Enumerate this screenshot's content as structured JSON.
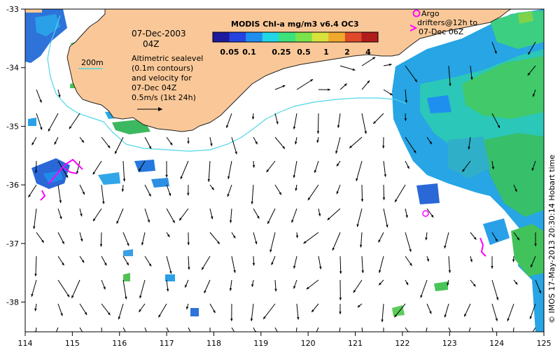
{
  "title": {
    "product": "MODIS Chl-a mg/m3 v6.4 OC3",
    "date": "07-Dec-2003",
    "time": "04Z"
  },
  "colorbar": {
    "ticks": [
      "0.05",
      "0.1",
      "0.25",
      "0.5",
      "1",
      "2",
      "4"
    ],
    "colors": [
      "#1e1a9c",
      "#2443e0",
      "#1f8fef",
      "#22d6e6",
      "#3ce27a",
      "#7be24a",
      "#d7e23a",
      "#f0a92c",
      "#e0482a",
      "#b01c1c"
    ]
  },
  "legend": {
    "depth_label": "200m",
    "sealevel_text": [
      "Altimetric sealevel",
      "(0.1m contours)",
      "and velocity for",
      "07-Dec 04Z",
      "0.5m/s (1kt 24h)"
    ],
    "argo_text": [
      "Argo",
      "drifters@12h to",
      "07-Dec 06Z"
    ]
  },
  "axes": {
    "x_ticks": [
      "114",
      "115",
      "116",
      "117",
      "118",
      "119",
      "120",
      "121",
      "122",
      "123",
      "124",
      "125"
    ],
    "y_ticks": [
      "-33",
      "-34",
      "-35",
      "-36",
      "-37",
      "-38"
    ]
  },
  "credit": "© IMOS 17-May-2013 20:30:14 Hobart time",
  "colors": {
    "land": "#fac898",
    "ocean": "#ffffff",
    "contour_200m": "#4fd6e6",
    "vector": "#000000",
    "argo": "#ff00ff"
  }
}
